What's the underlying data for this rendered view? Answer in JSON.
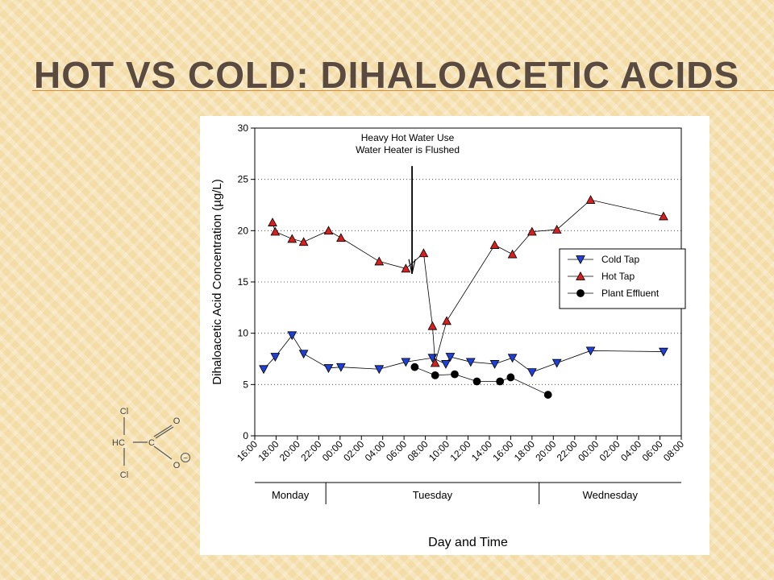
{
  "slide": {
    "title": "HOT VS COLD:  DIHALOACETIC ACIDS"
  },
  "colors": {
    "cold_tap": "#1f3fd6",
    "hot_tap": "#d42020",
    "plant_effluent": "#000000",
    "title_rule": "#d38f3a"
  },
  "chart_data": {
    "type": "line",
    "ylabel": "Dihaloacetic Acid Concentration (µg/L)",
    "xlabel": "Day and Time",
    "ylim": [
      0,
      30
    ],
    "yticks": [
      "0",
      "5",
      "10",
      "15",
      "20",
      "25",
      "30"
    ],
    "xlim_hours": [
      16,
      64
    ],
    "xticks": [
      "16:00",
      "18:00",
      "20:00",
      "22:00",
      "00:00",
      "02:00",
      "04:00",
      "06:00",
      "08:00",
      "10:00",
      "12:00",
      "14:00",
      "16:00",
      "18:00",
      "20:00",
      "22:00",
      "00:00",
      "02:00",
      "04:00",
      "06:00",
      "08:00"
    ],
    "grid": "horizontal dotted",
    "legend_position": "right",
    "days": [
      {
        "label": "Monday",
        "start_hour": 16,
        "end_hour": 24
      },
      {
        "label": "Tuesday",
        "start_hour": 24,
        "end_hour": 48
      },
      {
        "label": "Wednesday",
        "start_hour": 48,
        "end_hour": 64
      }
    ],
    "annotation": {
      "lines": [
        "Heavy Hot Water Use",
        "Water Heater is Flushed"
      ],
      "arrow_hour": 33.7,
      "arrow_from": 26.3,
      "arrow_to": 15.8
    },
    "series": [
      {
        "name": "Cold Tap",
        "marker": "triangle-down",
        "points": [
          [
            17.0,
            6.5
          ],
          [
            18.3,
            7.7
          ],
          [
            20.2,
            9.8
          ],
          [
            21.5,
            8.0
          ],
          [
            24.3,
            6.6
          ],
          [
            25.7,
            6.7
          ],
          [
            30.0,
            6.5
          ],
          [
            33.0,
            7.2
          ],
          [
            36.0,
            7.6
          ],
          [
            37.5,
            7.0
          ],
          [
            38.0,
            7.7
          ],
          [
            40.3,
            7.2
          ],
          [
            43.0,
            7.0
          ],
          [
            45.0,
            7.6
          ],
          [
            47.2,
            6.2
          ],
          [
            50.0,
            7.1
          ],
          [
            53.8,
            8.3
          ],
          [
            62.0,
            8.2
          ]
        ]
      },
      {
        "name": "Hot Tap",
        "marker": "triangle-up",
        "points": [
          [
            18.0,
            20.8
          ],
          [
            18.3,
            19.9
          ],
          [
            20.2,
            19.2
          ],
          [
            21.5,
            18.9
          ],
          [
            24.3,
            20.0
          ],
          [
            25.7,
            19.3
          ],
          [
            30.0,
            17.0
          ],
          [
            33.0,
            16.3
          ],
          [
            35.0,
            17.8
          ],
          [
            36.0,
            10.7
          ],
          [
            36.3,
            7.1
          ],
          [
            37.6,
            11.2
          ],
          [
            43.0,
            18.6
          ],
          [
            45.0,
            17.7
          ],
          [
            47.2,
            19.9
          ],
          [
            50.0,
            20.1
          ],
          [
            53.8,
            23.0
          ],
          [
            62.0,
            21.4
          ]
        ]
      },
      {
        "name": "Plant Effluent",
        "marker": "circle",
        "points": [
          [
            34.0,
            6.7
          ],
          [
            36.3,
            5.9
          ],
          [
            38.5,
            6.0
          ],
          [
            41.0,
            5.3
          ],
          [
            43.6,
            5.3
          ],
          [
            44.8,
            5.7
          ],
          [
            49.0,
            4.0
          ]
        ]
      }
    ]
  },
  "molecule": {
    "atom_cl_top": "Cl",
    "atom_hc": "HC",
    "atom_c": "C",
    "atom_o_top": "O",
    "atom_o_bottom": "O",
    "charge": "−",
    "atom_cl_bottom": "Cl"
  }
}
